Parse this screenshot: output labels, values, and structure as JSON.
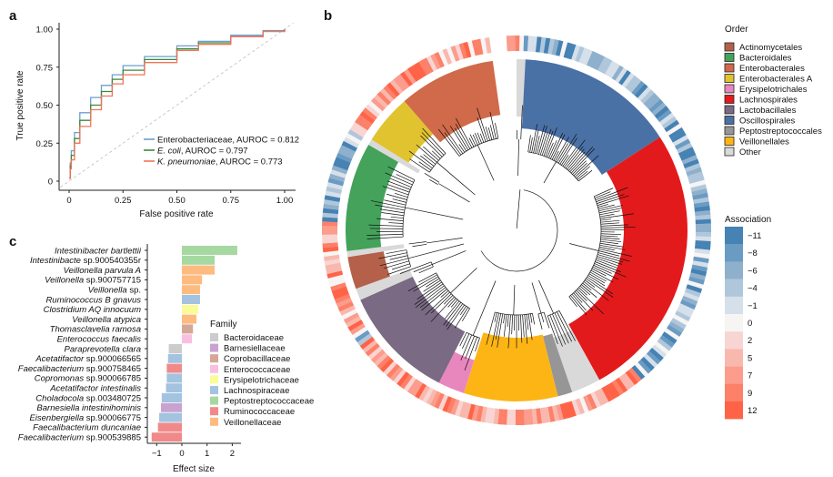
{
  "panels": {
    "a": "a",
    "b": "b",
    "c": "c"
  },
  "chart_data": [
    {
      "id": "roc",
      "type": "line",
      "xlabel": "False positive rate",
      "ylabel": "True positive rate",
      "xlim": [
        0,
        1
      ],
      "ylim": [
        0,
        1
      ],
      "xticks": [
        "0",
        "0.25",
        "0.50",
        "0.75",
        "1.00"
      ],
      "yticks": [
        "0",
        "0.25",
        "0.50",
        "0.75",
        "1.00"
      ],
      "diagonal": true,
      "legend_position": "bottom-right",
      "series": [
        {
          "name": "Enterobacteriaceae",
          "name_italic": false,
          "auroc_label": ", AUROC = 0.812",
          "color": "#6a9fcf",
          "x": [
            0,
            0.005,
            0.01,
            0.025,
            0.05,
            0.1,
            0.15,
            0.2,
            0.25,
            0.35,
            0.5,
            0.6,
            0.75,
            0.9,
            1
          ],
          "y": [
            0.02,
            0.12,
            0.2,
            0.32,
            0.45,
            0.55,
            0.63,
            0.7,
            0.76,
            0.82,
            0.89,
            0.92,
            0.96,
            0.99,
            1
          ]
        },
        {
          "name": "E. coli",
          "name_italic": true,
          "auroc_label": ", AUROC = 0.797",
          "color": "#3b8a3b",
          "x": [
            0,
            0.005,
            0.01,
            0.025,
            0.05,
            0.1,
            0.15,
            0.2,
            0.25,
            0.35,
            0.5,
            0.6,
            0.75,
            0.9,
            1
          ],
          "y": [
            0.02,
            0.1,
            0.17,
            0.28,
            0.4,
            0.5,
            0.59,
            0.67,
            0.73,
            0.8,
            0.87,
            0.91,
            0.95,
            0.985,
            1
          ]
        },
        {
          "name": "K. pneumoniae",
          "name_italic": true,
          "auroc_label": ", AUROC = 0.773",
          "color": "#f2735a",
          "x": [
            0,
            0.005,
            0.01,
            0.025,
            0.05,
            0.1,
            0.15,
            0.2,
            0.25,
            0.35,
            0.5,
            0.6,
            0.75,
            0.9,
            1
          ],
          "y": [
            0.02,
            0.08,
            0.14,
            0.25,
            0.36,
            0.47,
            0.56,
            0.64,
            0.7,
            0.78,
            0.86,
            0.9,
            0.95,
            0.985,
            1
          ]
        }
      ]
    },
    {
      "id": "tree",
      "type": "circular-phylogeny",
      "order_legend": {
        "title": "Order",
        "items": [
          {
            "label": "Actinomycetales",
            "color": "#b5604a"
          },
          {
            "label": "Bacteroidales",
            "color": "#44a25a"
          },
          {
            "label": "Enterobacterales",
            "color": "#d06a4a"
          },
          {
            "label": "Enterobacterales A",
            "color": "#e0c32f"
          },
          {
            "label": "Erysipelotrichales",
            "color": "#e886be"
          },
          {
            "label": "Lachnospirales",
            "color": "#e31a1c"
          },
          {
            "label": "Lactobacillales",
            "color": "#7a6a84"
          },
          {
            "label": "Oscillospirales",
            "color": "#4a71a6"
          },
          {
            "label": "Peptostreptococcales",
            "color": "#969696"
          },
          {
            "label": "Veillonellales",
            "color": "#fdb515"
          },
          {
            "label": "Other",
            "color": "#d9d9d9"
          }
        ]
      },
      "clades": [
        {
          "order": "Other",
          "from": 0,
          "to": 3
        },
        {
          "order": "Oscillospirales",
          "from": 3,
          "to": 57
        },
        {
          "order": "Lachnospirales",
          "from": 57,
          "to": 151
        },
        {
          "order": "Other",
          "from": 151,
          "to": 161
        },
        {
          "order": "Peptostreptococcales",
          "from": 161,
          "to": 166
        },
        {
          "order": "Veillonellales",
          "from": 166,
          "to": 198
        },
        {
          "order": "Erysipelotrichales",
          "from": 198,
          "to": 207
        },
        {
          "order": "Lactobacillales",
          "from": 207,
          "to": 246
        },
        {
          "order": "Other",
          "from": 246,
          "to": 250
        },
        {
          "order": "Actinomycetales",
          "from": 250,
          "to": 261
        },
        {
          "order": "Other",
          "from": 261,
          "to": 263
        },
        {
          "order": "Bacteroidales",
          "from": 263,
          "to": 300
        },
        {
          "order": "Other",
          "from": 300,
          "to": 302
        },
        {
          "order": "Enterobacterales A",
          "from": 302,
          "to": 319
        },
        {
          "order": "Enterobacterales",
          "from": 319,
          "to": 352
        }
      ],
      "association_legend": {
        "title": "Association",
        "levels": [
          {
            "label": "−11",
            "value": -11,
            "color": "#4682b4"
          },
          {
            "label": "−8",
            "value": -8,
            "color": "#6a9bc3"
          },
          {
            "label": "−6",
            "value": -6,
            "color": "#8fb0cc"
          },
          {
            "label": "−4",
            "value": -4,
            "color": "#b0c7db"
          },
          {
            "label": "−1",
            "value": -1,
            "color": "#d6e0ea"
          },
          {
            "label": "0",
            "value": 0,
            "color": "#f7f4f4"
          },
          {
            "label": "2",
            "value": 2,
            "color": "#f8d5d2"
          },
          {
            "label": "5",
            "value": 5,
            "color": "#f9b8ae"
          },
          {
            "label": "7",
            "value": 7,
            "color": "#fb9c8c"
          },
          {
            "label": "9",
            "value": 9,
            "color": "#fd8068"
          },
          {
            "label": "12",
            "value": 12,
            "color": "#ff6347"
          }
        ]
      }
    },
    {
      "id": "effect",
      "type": "bar",
      "orientation": "horizontal",
      "xlabel": "Effect size",
      "xlim": [
        -1.3,
        2.3
      ],
      "xticks": [
        "−1",
        "0",
        "1",
        "2"
      ],
      "xtick_values": [
        -1,
        0,
        1,
        2
      ],
      "family_legend": {
        "title": "Family",
        "items": [
          {
            "label": "Bacteroidaceae",
            "color": "#cccccc"
          },
          {
            "label": "Barnesiellaceae",
            "color": "#c9a3cf"
          },
          {
            "label": "Coprobacillaceae",
            "color": "#d4a796"
          },
          {
            "label": "Enterococcaceae",
            "color": "#f9bfe0"
          },
          {
            "label": "Erysipelotrichaceae",
            "color": "#fbfb99"
          },
          {
            "label": "Lachnospiraceae",
            "color": "#a3c3e0"
          },
          {
            "label": "Peptostreptococcaceae",
            "color": "#a6d8a1"
          },
          {
            "label": "Ruminococcaceae",
            "color": "#f08a8a"
          },
          {
            "label": "Veillonellaceae",
            "color": "#fdbb7f"
          }
        ]
      },
      "bars": [
        {
          "genus": "Intestinibacter bartlettii",
          "rest": "",
          "family": "Peptostreptococcaceae",
          "value": 2.2
        },
        {
          "genus": "Intestinibacte",
          "rest": " sp.900540355r",
          "family": "Peptostreptococcaceae",
          "value": 1.3
        },
        {
          "genus": "Veillonella parvula A",
          "rest": "",
          "family": "Veillonellaceae",
          "value": 1.3
        },
        {
          "genus": "Veillonella",
          "rest": " sp.900757715",
          "family": "Veillonellaceae",
          "value": 0.8
        },
        {
          "genus": "Veillonella",
          "rest": " sp.",
          "family": "Veillonellaceae",
          "value": 0.72
        },
        {
          "genus": "Ruminococcus B gnavus",
          "rest": "",
          "family": "Lachnospiraceae",
          "value": 0.72
        },
        {
          "genus": "Clostridium AQ innocuum",
          "rest": "",
          "family": "Erysipelotrichaceae",
          "value": 0.65
        },
        {
          "genus": "Veillonella atypica",
          "rest": "",
          "family": "Veillonellaceae",
          "value": 0.58
        },
        {
          "genus": "Thomasclavelia ramosa",
          "rest": "",
          "family": "Coprobacillaceae",
          "value": 0.44
        },
        {
          "genus": "Enterococcus faecalis",
          "rest": "",
          "family": "Enterococcaceae",
          "value": 0.4
        },
        {
          "genus": "Paraprevotella clara",
          "rest": "",
          "family": "Bacteroidaceae",
          "value": -0.52
        },
        {
          "genus": "Acetatifactor",
          "rest": " sp.900066565",
          "family": "Lachnospiraceae",
          "value": -0.55
        },
        {
          "genus": "Faecalibacterium",
          "rest": " sp.900758465",
          "family": "Ruminococcaceae",
          "value": -0.6
        },
        {
          "genus": "Copromonas",
          "rest": " sp.900066785",
          "family": "Lachnospiraceae",
          "value": -0.6
        },
        {
          "genus": "Acetatifactor intestinalis",
          "rest": "",
          "family": "Lachnospiraceae",
          "value": -0.63
        },
        {
          "genus": "Choladocola",
          "rest": " sp.003480725",
          "family": "Lachnospiraceae",
          "value": -0.8
        },
        {
          "genus": "Barnesiella intestinihominis",
          "rest": "",
          "family": "Barnesiellaceae",
          "value": -0.83
        },
        {
          "genus": "Eisenbergiella",
          "rest": " sp.900066775",
          "family": "Lachnospiraceae",
          "value": -0.9
        },
        {
          "genus": "Faecalibacterium duncaniae",
          "rest": "",
          "family": "Ruminococcaceae",
          "value": -0.95
        },
        {
          "genus": "Faecalibacterium",
          "rest": " sp.900539885",
          "family": "Ruminococcaceae",
          "value": -1.2
        }
      ]
    }
  ]
}
